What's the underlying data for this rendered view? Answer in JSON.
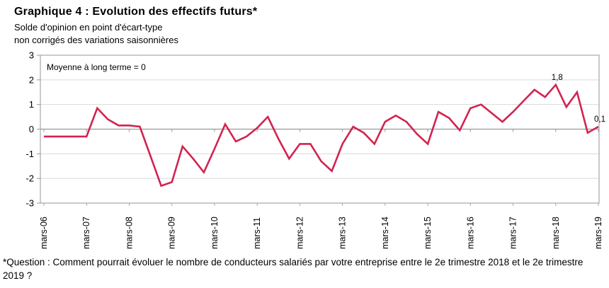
{
  "title": "Graphique 4 : Evolution des effectifs futurs*",
  "subtitle_line1": "Solde d'opinion en point d'écart-type",
  "subtitle_line2": "non corrigés des variations saisonnières",
  "annotation": "Moyenne à long terme = 0",
  "footnote": "*Question : Comment pourrait évoluer le nombre de conducteurs salariés par votre entreprise entre le 2e trimestre 2018 et le 2e trimestre 2019 ?",
  "colors": {
    "line": "#d2234f",
    "grid": "#d9d9d9",
    "zero_axis": "#9a9a9a",
    "border": "#a6a6a6",
    "text": "#000000"
  },
  "chart_data": {
    "type": "line",
    "title": "Graphique 4 : Evolution des effectifs futurs*",
    "ylabel": "Solde d'opinion en point d'écart-type, non corrigés des variations saisonnières",
    "frequency": "quarterly",
    "x_start": "mars-06",
    "x_end": "mars-19",
    "x_tick_labels": [
      "mars-06",
      "mars-07",
      "mars-08",
      "mars-09",
      "mars-10",
      "mars-11",
      "mars-12",
      "mars-13",
      "mars-14",
      "mars-15",
      "mars-16",
      "mars-17",
      "mars-18",
      "mars-19"
    ],
    "y_ticks": [
      "3",
      "2",
      "1",
      "0",
      "-1",
      "-2",
      "-3"
    ],
    "ylim": [
      -3,
      3
    ],
    "grid": true,
    "legend": false,
    "values": [
      -0.3,
      -0.3,
      -0.3,
      -0.3,
      -0.3,
      0.85,
      0.4,
      0.15,
      0.15,
      0.1,
      -1.1,
      -2.3,
      -2.15,
      -0.7,
      -1.2,
      -1.75,
      -0.8,
      0.2,
      -0.5,
      -0.3,
      0.05,
      0.5,
      -0.4,
      -1.2,
      -0.6,
      -0.6,
      -1.3,
      -1.7,
      -0.6,
      0.1,
      -0.15,
      -0.6,
      0.3,
      0.55,
      0.3,
      -0.2,
      -0.6,
      0.7,
      0.45,
      -0.05,
      0.85,
      1.0,
      0.65,
      0.3,
      0.7,
      1.15,
      1.6,
      1.3,
      1.8,
      0.9,
      1.5,
      -0.15,
      0.1
    ],
    "point_labels": [
      {
        "index": 48,
        "text": "1,8"
      },
      {
        "index": 52,
        "text": "0,1"
      }
    ],
    "annotation": "Moyenne à long terme = 0"
  }
}
